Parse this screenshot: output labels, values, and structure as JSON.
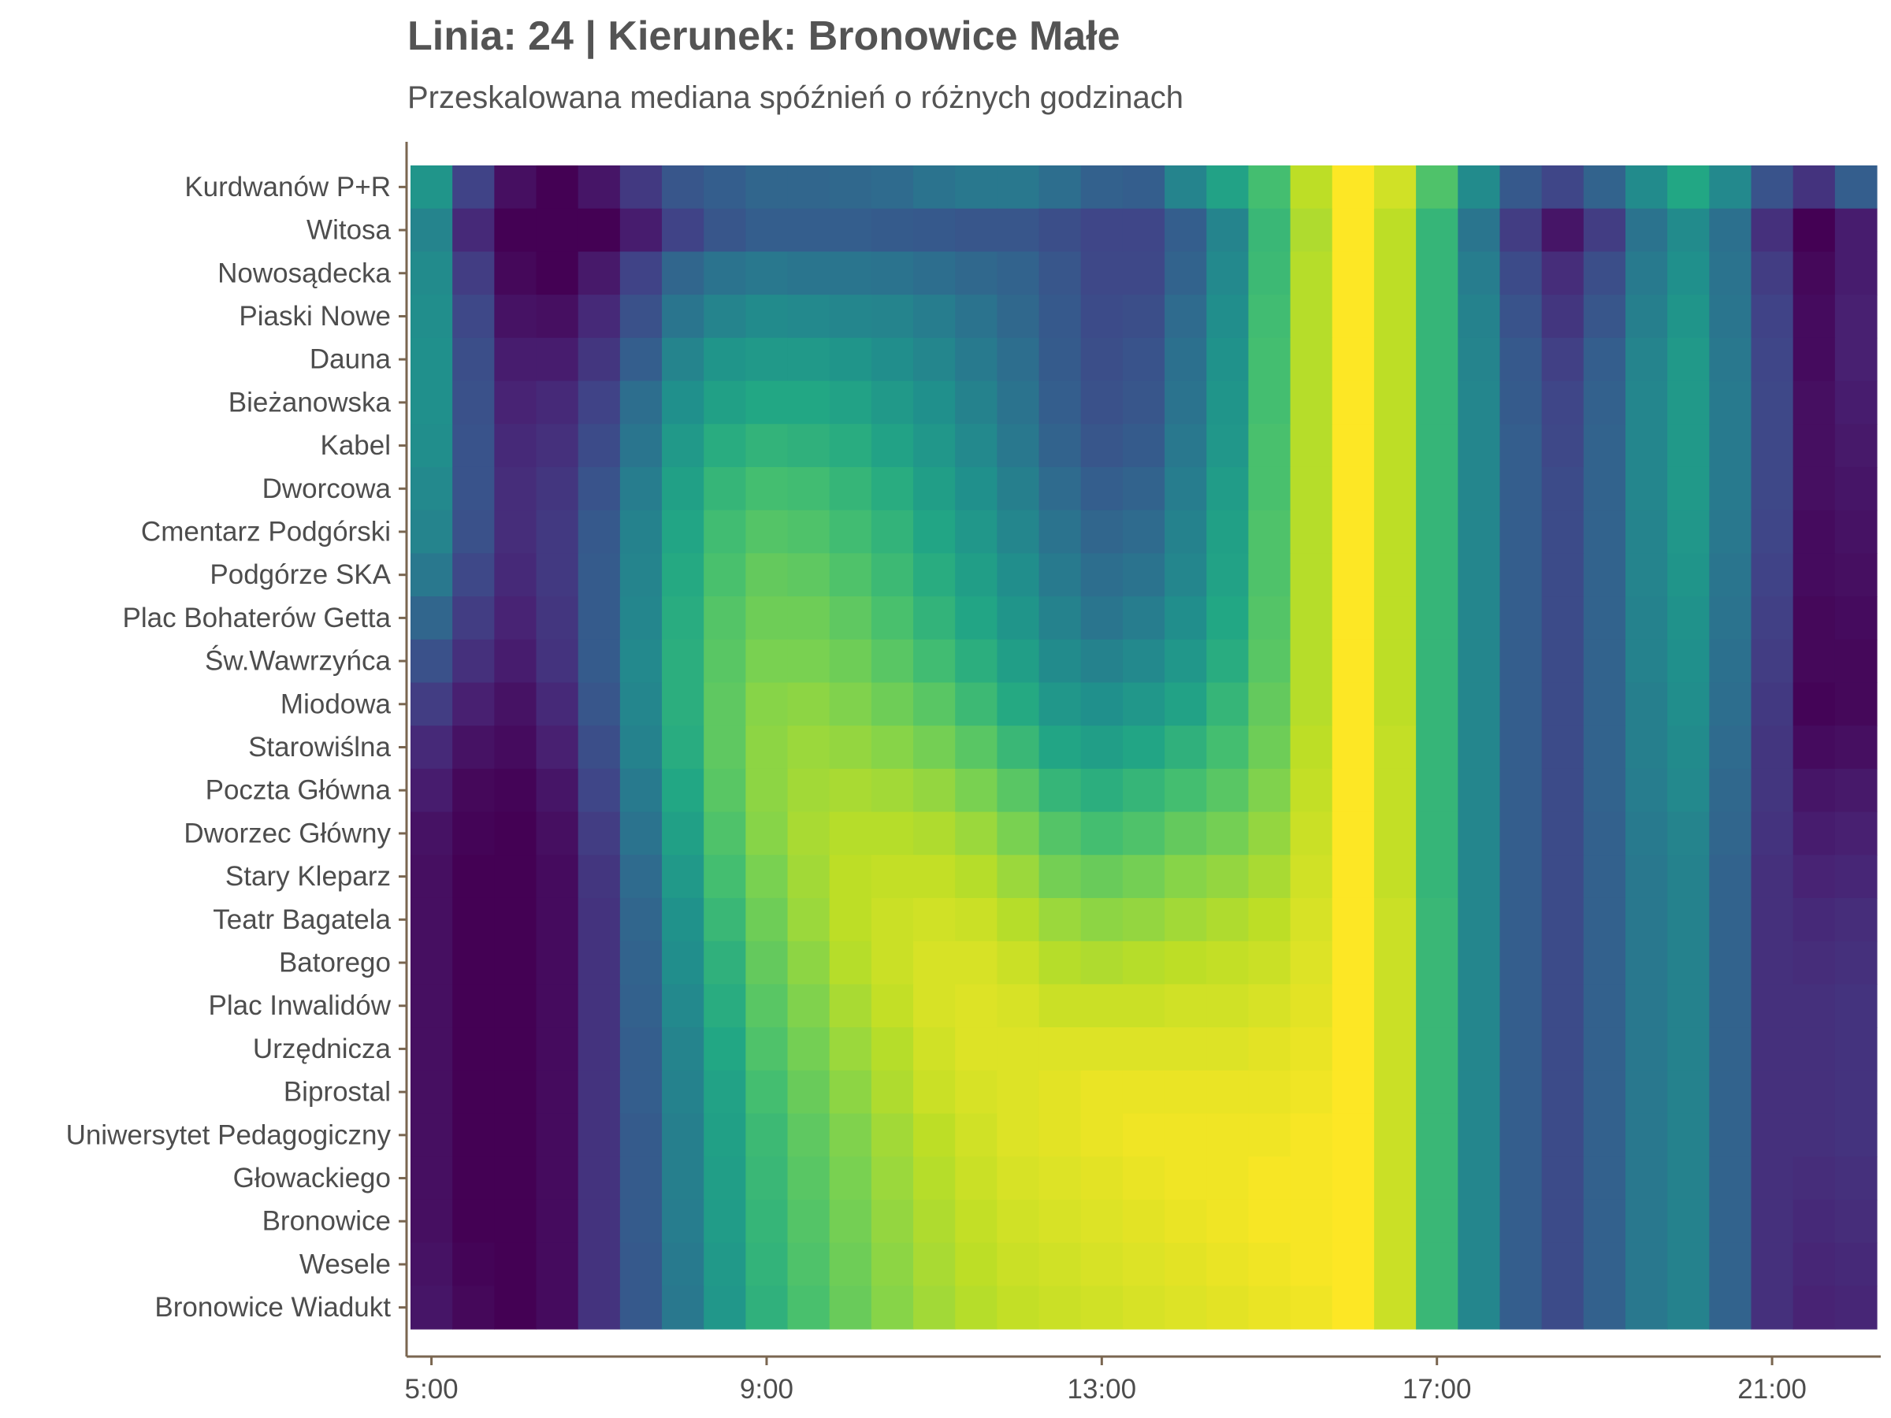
{
  "chart_data": {
    "type": "heatmap",
    "title": "Linia: 24 | Kierunek: Bronowice Małe",
    "subtitle": "Przeskalowana mediana spóźnień o różnych godzinach",
    "xlabel": "",
    "ylabel": "",
    "x_ticks": [
      "5:00",
      "9:00",
      "13:00",
      "17:00",
      "21:00"
    ],
    "x_start_hour": 5,
    "x_step_minutes": 30,
    "colormap": "viridis",
    "value_range": [
      0,
      1
    ],
    "axis_color": "#7a6650",
    "stops": [
      "Kurdwanów P+R",
      "Witosa",
      "Nowosądecka",
      "Piaski Nowe",
      "Dauna",
      "Bieżanowska",
      "Kabel",
      "Dworcowa",
      "Cmentarz Podgórski",
      "Podgórze SKA",
      "Plac Bohaterów Getta",
      "Św.Wawrzyńca",
      "Miodowa",
      "Starowiślna",
      "Poczta Główna",
      "Dworzec Główny",
      "Stary Kleparz",
      "Teatr Bagatela",
      "Batorego",
      "Plac Inwalidów",
      "Urzędnicza",
      "Biprostal",
      "Uniwersytet Pedagogiczny",
      "Głowackiego",
      "Bronowice",
      "Wesele",
      "Bronowice Wiadukt"
    ],
    "values": [
      [
        0.52,
        0.2,
        0.04,
        0.0,
        0.06,
        0.17,
        0.27,
        0.3,
        0.33,
        0.33,
        0.34,
        0.35,
        0.38,
        0.4,
        0.4,
        0.36,
        0.31,
        0.3,
        0.45,
        0.58,
        0.7,
        0.9,
        1.0,
        0.93,
        0.72,
        0.48,
        0.28,
        0.21,
        0.32,
        0.48,
        0.6,
        0.47,
        0.26,
        0.15,
        0.3
      ],
      [
        0.45,
        0.12,
        0.0,
        0.0,
        0.0,
        0.08,
        0.2,
        0.27,
        0.3,
        0.3,
        0.3,
        0.29,
        0.28,
        0.27,
        0.27,
        0.24,
        0.21,
        0.21,
        0.3,
        0.45,
        0.67,
        0.88,
        1.0,
        0.9,
        0.66,
        0.39,
        0.18,
        0.06,
        0.18,
        0.38,
        0.48,
        0.37,
        0.14,
        0.0,
        0.08
      ],
      [
        0.48,
        0.18,
        0.02,
        0.0,
        0.07,
        0.2,
        0.33,
        0.38,
        0.4,
        0.39,
        0.39,
        0.38,
        0.36,
        0.34,
        0.32,
        0.27,
        0.22,
        0.22,
        0.32,
        0.47,
        0.68,
        0.89,
        1.0,
        0.9,
        0.66,
        0.42,
        0.23,
        0.13,
        0.24,
        0.41,
        0.5,
        0.38,
        0.18,
        0.02,
        0.08
      ],
      [
        0.49,
        0.22,
        0.05,
        0.04,
        0.12,
        0.25,
        0.39,
        0.45,
        0.48,
        0.47,
        0.46,
        0.45,
        0.42,
        0.38,
        0.34,
        0.28,
        0.23,
        0.24,
        0.35,
        0.49,
        0.69,
        0.89,
        1.0,
        0.9,
        0.66,
        0.44,
        0.26,
        0.16,
        0.27,
        0.43,
        0.52,
        0.39,
        0.2,
        0.03,
        0.09
      ],
      [
        0.5,
        0.24,
        0.08,
        0.08,
        0.16,
        0.3,
        0.45,
        0.52,
        0.54,
        0.54,
        0.52,
        0.49,
        0.46,
        0.41,
        0.36,
        0.29,
        0.24,
        0.26,
        0.37,
        0.51,
        0.7,
        0.89,
        1.0,
        0.9,
        0.66,
        0.45,
        0.28,
        0.19,
        0.3,
        0.45,
        0.54,
        0.4,
        0.21,
        0.03,
        0.09
      ],
      [
        0.5,
        0.25,
        0.1,
        0.12,
        0.2,
        0.36,
        0.5,
        0.57,
        0.6,
        0.6,
        0.58,
        0.54,
        0.5,
        0.44,
        0.38,
        0.3,
        0.25,
        0.27,
        0.38,
        0.52,
        0.7,
        0.89,
        1.0,
        0.9,
        0.66,
        0.46,
        0.29,
        0.21,
        0.31,
        0.46,
        0.54,
        0.41,
        0.22,
        0.04,
        0.08
      ],
      [
        0.49,
        0.26,
        0.12,
        0.14,
        0.23,
        0.39,
        0.54,
        0.62,
        0.65,
        0.64,
        0.62,
        0.58,
        0.53,
        0.47,
        0.4,
        0.32,
        0.27,
        0.29,
        0.4,
        0.53,
        0.71,
        0.89,
        1.0,
        0.9,
        0.66,
        0.46,
        0.3,
        0.22,
        0.32,
        0.46,
        0.54,
        0.41,
        0.22,
        0.04,
        0.07
      ],
      [
        0.47,
        0.26,
        0.13,
        0.16,
        0.26,
        0.42,
        0.57,
        0.66,
        0.7,
        0.69,
        0.66,
        0.62,
        0.56,
        0.5,
        0.43,
        0.35,
        0.3,
        0.32,
        0.42,
        0.55,
        0.71,
        0.89,
        1.0,
        0.9,
        0.66,
        0.46,
        0.3,
        0.23,
        0.32,
        0.46,
        0.54,
        0.41,
        0.22,
        0.04,
        0.06
      ],
      [
        0.45,
        0.25,
        0.13,
        0.17,
        0.28,
        0.44,
        0.59,
        0.69,
        0.73,
        0.72,
        0.69,
        0.65,
        0.59,
        0.53,
        0.46,
        0.38,
        0.33,
        0.35,
        0.44,
        0.57,
        0.72,
        0.89,
        1.0,
        0.9,
        0.66,
        0.46,
        0.3,
        0.23,
        0.32,
        0.45,
        0.53,
        0.4,
        0.21,
        0.03,
        0.05
      ],
      [
        0.4,
        0.22,
        0.12,
        0.17,
        0.29,
        0.45,
        0.61,
        0.71,
        0.76,
        0.75,
        0.72,
        0.68,
        0.62,
        0.56,
        0.49,
        0.41,
        0.36,
        0.38,
        0.46,
        0.58,
        0.72,
        0.89,
        1.0,
        0.9,
        0.66,
        0.46,
        0.3,
        0.23,
        0.32,
        0.45,
        0.52,
        0.39,
        0.2,
        0.03,
        0.04
      ],
      [
        0.33,
        0.18,
        0.1,
        0.16,
        0.29,
        0.46,
        0.62,
        0.73,
        0.78,
        0.78,
        0.75,
        0.71,
        0.65,
        0.59,
        0.52,
        0.44,
        0.39,
        0.42,
        0.49,
        0.6,
        0.73,
        0.89,
        1.0,
        0.9,
        0.66,
        0.46,
        0.3,
        0.23,
        0.32,
        0.44,
        0.51,
        0.38,
        0.19,
        0.02,
        0.03
      ],
      [
        0.25,
        0.14,
        0.08,
        0.15,
        0.29,
        0.47,
        0.63,
        0.74,
        0.8,
        0.8,
        0.78,
        0.74,
        0.69,
        0.63,
        0.56,
        0.48,
        0.44,
        0.47,
        0.53,
        0.62,
        0.74,
        0.89,
        1.0,
        0.9,
        0.66,
        0.46,
        0.3,
        0.23,
        0.32,
        0.44,
        0.5,
        0.37,
        0.18,
        0.02,
        0.02
      ],
      [
        0.18,
        0.09,
        0.05,
        0.12,
        0.27,
        0.46,
        0.63,
        0.75,
        0.82,
        0.83,
        0.81,
        0.78,
        0.74,
        0.68,
        0.61,
        0.53,
        0.5,
        0.53,
        0.58,
        0.66,
        0.76,
        0.89,
        1.0,
        0.9,
        0.66,
        0.46,
        0.3,
        0.23,
        0.32,
        0.43,
        0.49,
        0.36,
        0.17,
        0.01,
        0.02
      ],
      [
        0.12,
        0.05,
        0.03,
        0.09,
        0.24,
        0.44,
        0.62,
        0.75,
        0.83,
        0.85,
        0.84,
        0.82,
        0.79,
        0.74,
        0.67,
        0.59,
        0.56,
        0.59,
        0.64,
        0.7,
        0.78,
        0.9,
        1.0,
        0.91,
        0.66,
        0.46,
        0.3,
        0.23,
        0.32,
        0.43,
        0.48,
        0.35,
        0.16,
        0.03,
        0.04
      ],
      [
        0.08,
        0.02,
        0.01,
        0.06,
        0.21,
        0.41,
        0.6,
        0.74,
        0.83,
        0.86,
        0.87,
        0.86,
        0.84,
        0.8,
        0.74,
        0.66,
        0.63,
        0.66,
        0.7,
        0.74,
        0.81,
        0.91,
        1.0,
        0.91,
        0.66,
        0.46,
        0.3,
        0.23,
        0.32,
        0.42,
        0.47,
        0.34,
        0.16,
        0.06,
        0.07
      ],
      [
        0.05,
        0.01,
        0.0,
        0.04,
        0.18,
        0.38,
        0.57,
        0.72,
        0.82,
        0.87,
        0.89,
        0.89,
        0.88,
        0.85,
        0.8,
        0.73,
        0.7,
        0.72,
        0.76,
        0.79,
        0.84,
        0.92,
        1.0,
        0.91,
        0.66,
        0.46,
        0.3,
        0.23,
        0.31,
        0.41,
        0.45,
        0.33,
        0.15,
        0.08,
        0.09
      ],
      [
        0.04,
        0.0,
        0.0,
        0.03,
        0.16,
        0.35,
        0.54,
        0.7,
        0.8,
        0.86,
        0.9,
        0.91,
        0.91,
        0.89,
        0.85,
        0.79,
        0.77,
        0.79,
        0.82,
        0.84,
        0.87,
        0.93,
        1.0,
        0.91,
        0.66,
        0.46,
        0.3,
        0.23,
        0.31,
        0.4,
        0.44,
        0.32,
        0.14,
        0.1,
        0.11
      ],
      [
        0.04,
        0.0,
        0.0,
        0.03,
        0.15,
        0.33,
        0.51,
        0.67,
        0.78,
        0.85,
        0.9,
        0.92,
        0.93,
        0.92,
        0.89,
        0.85,
        0.83,
        0.84,
        0.86,
        0.88,
        0.9,
        0.94,
        1.0,
        0.92,
        0.67,
        0.46,
        0.3,
        0.23,
        0.31,
        0.4,
        0.44,
        0.32,
        0.14,
        0.12,
        0.13
      ],
      [
        0.04,
        0.0,
        0.0,
        0.03,
        0.15,
        0.32,
        0.49,
        0.64,
        0.76,
        0.83,
        0.89,
        0.92,
        0.94,
        0.94,
        0.92,
        0.89,
        0.88,
        0.89,
        0.9,
        0.91,
        0.92,
        0.95,
        1.0,
        0.92,
        0.67,
        0.46,
        0.3,
        0.23,
        0.31,
        0.4,
        0.44,
        0.32,
        0.14,
        0.13,
        0.14
      ],
      [
        0.04,
        0.0,
        0.0,
        0.03,
        0.15,
        0.31,
        0.47,
        0.62,
        0.74,
        0.81,
        0.87,
        0.91,
        0.94,
        0.95,
        0.94,
        0.92,
        0.92,
        0.92,
        0.93,
        0.93,
        0.94,
        0.96,
        1.0,
        0.92,
        0.67,
        0.46,
        0.3,
        0.23,
        0.31,
        0.4,
        0.44,
        0.32,
        0.14,
        0.14,
        0.15
      ],
      [
        0.04,
        0.0,
        0.0,
        0.03,
        0.15,
        0.3,
        0.45,
        0.6,
        0.72,
        0.79,
        0.85,
        0.89,
        0.93,
        0.95,
        0.95,
        0.95,
        0.95,
        0.95,
        0.95,
        0.95,
        0.96,
        0.97,
        1.0,
        0.92,
        0.67,
        0.46,
        0.3,
        0.23,
        0.31,
        0.4,
        0.44,
        0.32,
        0.14,
        0.14,
        0.15
      ],
      [
        0.04,
        0.0,
        0.0,
        0.03,
        0.15,
        0.3,
        0.44,
        0.58,
        0.7,
        0.77,
        0.83,
        0.88,
        0.92,
        0.94,
        0.95,
        0.96,
        0.97,
        0.97,
        0.97,
        0.97,
        0.97,
        0.98,
        1.0,
        0.92,
        0.67,
        0.46,
        0.3,
        0.23,
        0.31,
        0.4,
        0.44,
        0.32,
        0.14,
        0.14,
        0.15
      ],
      [
        0.04,
        0.0,
        0.0,
        0.03,
        0.15,
        0.29,
        0.43,
        0.57,
        0.68,
        0.75,
        0.81,
        0.86,
        0.9,
        0.93,
        0.95,
        0.96,
        0.97,
        0.98,
        0.98,
        0.98,
        0.98,
        0.99,
        1.0,
        0.92,
        0.67,
        0.46,
        0.3,
        0.23,
        0.31,
        0.4,
        0.44,
        0.32,
        0.14,
        0.14,
        0.15
      ],
      [
        0.04,
        0.0,
        0.0,
        0.03,
        0.15,
        0.29,
        0.43,
        0.56,
        0.67,
        0.74,
        0.8,
        0.85,
        0.89,
        0.92,
        0.94,
        0.95,
        0.96,
        0.97,
        0.98,
        0.98,
        0.99,
        0.99,
        1.0,
        0.92,
        0.67,
        0.46,
        0.3,
        0.23,
        0.31,
        0.4,
        0.44,
        0.32,
        0.14,
        0.13,
        0.14
      ],
      [
        0.04,
        0.0,
        0.0,
        0.03,
        0.15,
        0.29,
        0.42,
        0.55,
        0.66,
        0.73,
        0.79,
        0.84,
        0.88,
        0.91,
        0.93,
        0.94,
        0.95,
        0.96,
        0.97,
        0.98,
        0.99,
        0.99,
        1.0,
        0.92,
        0.67,
        0.46,
        0.3,
        0.23,
        0.31,
        0.4,
        0.44,
        0.32,
        0.14,
        0.12,
        0.13
      ],
      [
        0.05,
        0.01,
        0.0,
        0.03,
        0.15,
        0.28,
        0.41,
        0.54,
        0.65,
        0.72,
        0.78,
        0.83,
        0.87,
        0.9,
        0.92,
        0.93,
        0.94,
        0.95,
        0.96,
        0.97,
        0.98,
        0.99,
        1.0,
        0.92,
        0.67,
        0.46,
        0.3,
        0.23,
        0.31,
        0.4,
        0.44,
        0.32,
        0.14,
        0.11,
        0.12
      ],
      [
        0.06,
        0.02,
        0.0,
        0.03,
        0.15,
        0.28,
        0.4,
        0.53,
        0.64,
        0.71,
        0.77,
        0.82,
        0.86,
        0.89,
        0.91,
        0.92,
        0.93,
        0.94,
        0.95,
        0.96,
        0.97,
        0.98,
        1.0,
        0.92,
        0.67,
        0.46,
        0.3,
        0.23,
        0.31,
        0.4,
        0.44,
        0.32,
        0.14,
        0.1,
        0.11
      ]
    ]
  }
}
